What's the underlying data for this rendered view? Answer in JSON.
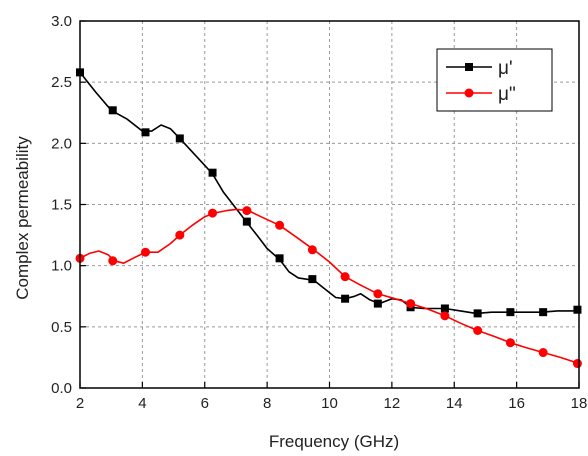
{
  "chart_data": {
    "type": "line",
    "xlabel": "Frequency (GHz)",
    "ylabel": "Complex permeability",
    "xlim": [
      2,
      18
    ],
    "ylim": [
      0.0,
      3.0
    ],
    "x_ticks": [
      "2",
      "4",
      "6",
      "8",
      "10",
      "12",
      "14",
      "16",
      "18"
    ],
    "y_ticks": [
      "0.0",
      "0.5",
      "1.0",
      "1.5",
      "2.0",
      "2.5",
      "3.0"
    ],
    "grid": "dashed",
    "legend_position": "top-right",
    "series": [
      {
        "name": "μ'",
        "color": "#000000",
        "marker": "square",
        "curve": [
          [
            2.0,
            2.58
          ],
          [
            2.5,
            2.42
          ],
          [
            3.0,
            2.27
          ],
          [
            3.5,
            2.2
          ],
          [
            4.0,
            2.1
          ],
          [
            4.3,
            2.1
          ],
          [
            4.6,
            2.15
          ],
          [
            4.9,
            2.12
          ],
          [
            5.2,
            2.04
          ],
          [
            5.6,
            1.93
          ],
          [
            6.0,
            1.82
          ],
          [
            6.25,
            1.75
          ],
          [
            6.6,
            1.6
          ],
          [
            7.0,
            1.47
          ],
          [
            7.3,
            1.37
          ],
          [
            7.7,
            1.24
          ],
          [
            8.0,
            1.14
          ],
          [
            8.4,
            1.05
          ],
          [
            8.7,
            0.95
          ],
          [
            9.0,
            0.9
          ],
          [
            9.5,
            0.88
          ],
          [
            9.8,
            0.82
          ],
          [
            10.2,
            0.74
          ],
          [
            10.5,
            0.73
          ],
          [
            10.8,
            0.75
          ],
          [
            11.0,
            0.77
          ],
          [
            11.3,
            0.72
          ],
          [
            11.6,
            0.69
          ],
          [
            12.0,
            0.73
          ],
          [
            12.3,
            0.72
          ],
          [
            12.6,
            0.66
          ],
          [
            13.0,
            0.65
          ],
          [
            13.5,
            0.65
          ],
          [
            13.7,
            0.65
          ],
          [
            14.2,
            0.63
          ],
          [
            14.7,
            0.61
          ],
          [
            15.2,
            0.62
          ],
          [
            15.8,
            0.62
          ],
          [
            16.3,
            0.62
          ],
          [
            16.8,
            0.62
          ],
          [
            17.3,
            0.63
          ],
          [
            17.8,
            0.63
          ],
          [
            18.0,
            0.64
          ]
        ],
        "markers": [
          [
            2.0,
            2.58
          ],
          [
            3.05,
            2.27
          ],
          [
            4.1,
            2.09
          ],
          [
            5.2,
            2.04
          ],
          [
            6.25,
            1.76
          ],
          [
            7.35,
            1.36
          ],
          [
            8.4,
            1.06
          ],
          [
            9.45,
            0.89
          ],
          [
            10.5,
            0.73
          ],
          [
            11.55,
            0.69
          ],
          [
            12.6,
            0.66
          ],
          [
            13.7,
            0.65
          ],
          [
            14.75,
            0.61
          ],
          [
            15.8,
            0.62
          ],
          [
            16.85,
            0.62
          ],
          [
            17.95,
            0.64
          ]
        ]
      },
      {
        "name": "μ\"",
        "color": "#ff0000",
        "marker": "circle",
        "curve": [
          [
            2.0,
            1.06
          ],
          [
            2.3,
            1.1
          ],
          [
            2.6,
            1.12
          ],
          [
            2.9,
            1.09
          ],
          [
            3.1,
            1.04
          ],
          [
            3.4,
            1.02
          ],
          [
            3.7,
            1.06
          ],
          [
            4.1,
            1.11
          ],
          [
            4.5,
            1.11
          ],
          [
            4.9,
            1.18
          ],
          [
            5.2,
            1.25
          ],
          [
            5.6,
            1.33
          ],
          [
            6.0,
            1.4
          ],
          [
            6.3,
            1.43
          ],
          [
            6.7,
            1.45
          ],
          [
            7.0,
            1.46
          ],
          [
            7.4,
            1.45
          ],
          [
            7.8,
            1.4
          ],
          [
            8.4,
            1.33
          ],
          [
            8.9,
            1.24
          ],
          [
            9.5,
            1.13
          ],
          [
            10.0,
            1.03
          ],
          [
            10.5,
            0.91
          ],
          [
            11.0,
            0.84
          ],
          [
            11.55,
            0.77
          ],
          [
            12.1,
            0.73
          ],
          [
            12.6,
            0.69
          ],
          [
            13.1,
            0.65
          ],
          [
            13.7,
            0.59
          ],
          [
            14.2,
            0.53
          ],
          [
            14.75,
            0.47
          ],
          [
            15.3,
            0.42
          ],
          [
            15.8,
            0.37
          ],
          [
            16.3,
            0.33
          ],
          [
            16.85,
            0.29
          ],
          [
            17.4,
            0.25
          ],
          [
            18.0,
            0.2
          ]
        ],
        "markers": [
          [
            2.0,
            1.06
          ],
          [
            3.05,
            1.04
          ],
          [
            4.1,
            1.11
          ],
          [
            5.2,
            1.25
          ],
          [
            6.25,
            1.43
          ],
          [
            7.35,
            1.45
          ],
          [
            8.4,
            1.33
          ],
          [
            9.45,
            1.13
          ],
          [
            10.5,
            0.91
          ],
          [
            11.55,
            0.77
          ],
          [
            12.6,
            0.69
          ],
          [
            13.7,
            0.59
          ],
          [
            14.75,
            0.47
          ],
          [
            15.8,
            0.37
          ],
          [
            16.85,
            0.29
          ],
          [
            17.95,
            0.2
          ]
        ]
      }
    ]
  }
}
